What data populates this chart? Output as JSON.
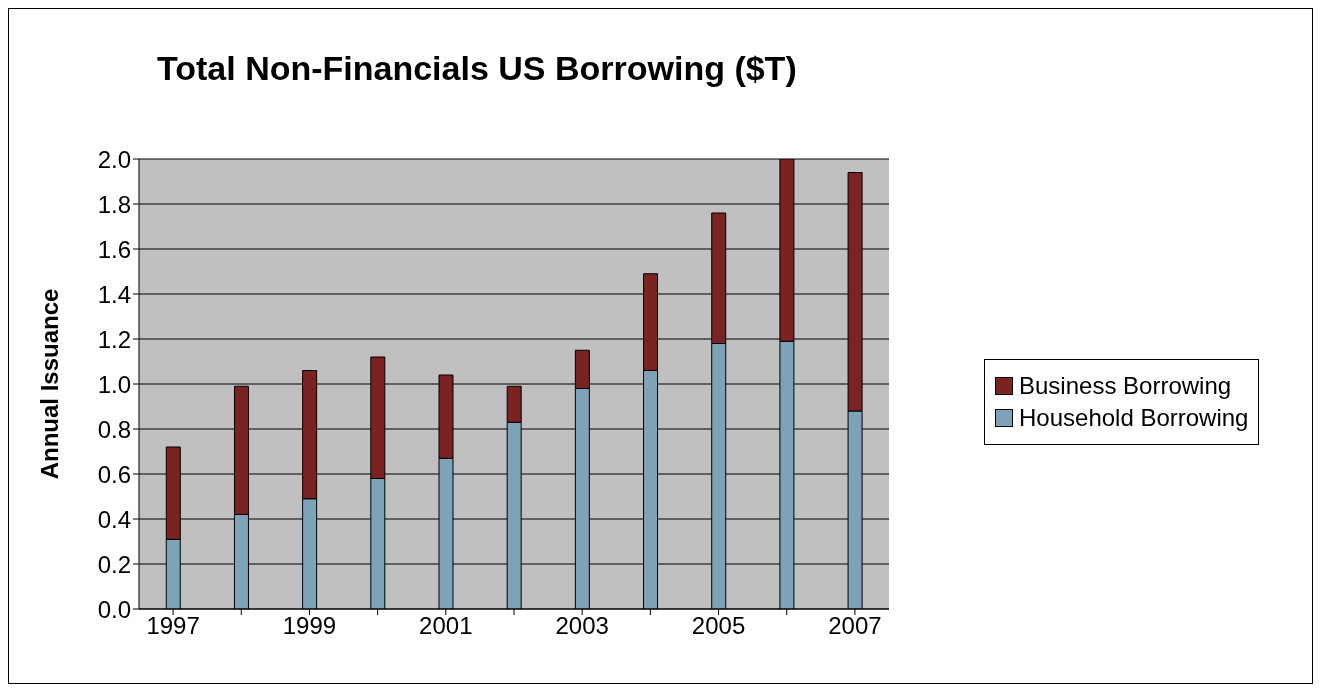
{
  "chart_data": {
    "type": "bar",
    "title": "Total Non-Financials US Borrowing ($T)",
    "ylabel": "Annual Issuance",
    "categories": [
      "1997",
      null,
      "1999",
      null,
      "2001",
      null,
      "2003",
      null,
      "2005",
      null,
      "2007"
    ],
    "stacked": true,
    "series": [
      {
        "name": "Household Borrowing",
        "color": "#7ea3b8",
        "values": [
          0.31,
          0.42,
          0.49,
          0.58,
          0.67,
          0.83,
          0.98,
          1.06,
          1.18,
          1.19,
          0.88
        ]
      },
      {
        "name": "Business Borrowing",
        "color": "#7b2323",
        "values": [
          0.41,
          0.57,
          0.57,
          0.54,
          0.37,
          0.16,
          0.17,
          0.43,
          0.58,
          0.81,
          1.06
        ]
      }
    ],
    "ylim": [
      0,
      2
    ],
    "yticks": [
      {
        "value": 0,
        "label": "0.0"
      },
      {
        "value": 0.2,
        "label": "0.2"
      },
      {
        "value": 0.4,
        "label": "0.4"
      },
      {
        "value": 0.6,
        "label": "0.6"
      },
      {
        "value": 0.8,
        "label": "0.8"
      },
      {
        "value": 1,
        "label": "1.0"
      },
      {
        "value": 1.2,
        "label": "1.2"
      },
      {
        "value": 1.4,
        "label": "1.4"
      },
      {
        "value": 1.6,
        "label": "1.6"
      },
      {
        "value": 1.8,
        "label": "1.8"
      },
      {
        "value": 2,
        "label": "2.0"
      }
    ],
    "grid": "y",
    "legend": "right"
  }
}
